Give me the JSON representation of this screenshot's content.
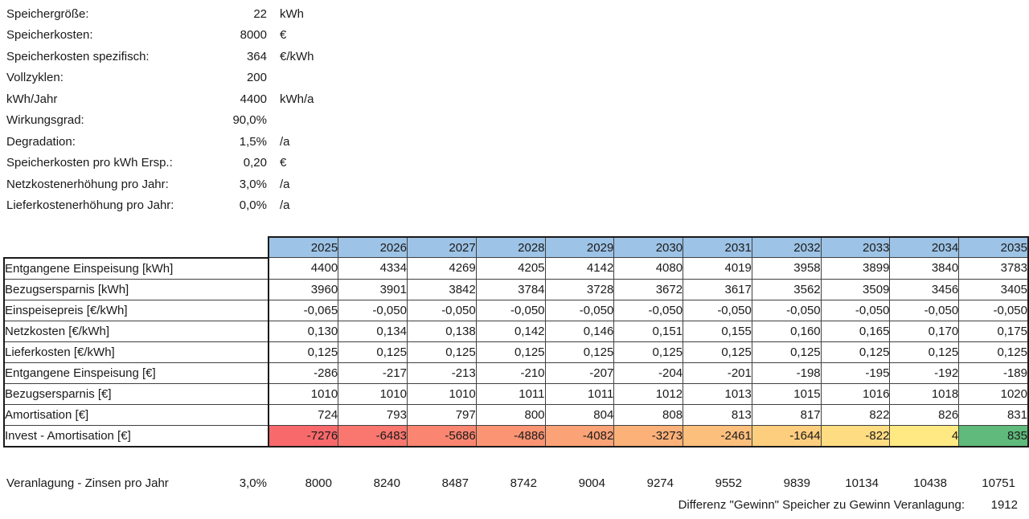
{
  "parameters": [
    {
      "label": "Speichergröße:",
      "value": "22",
      "unit": "kWh"
    },
    {
      "label": "Speicherkosten:",
      "value": "8000",
      "unit": "€"
    },
    {
      "label": "Speicherkosten spezifisch:",
      "value": "364",
      "unit": "€/kWh"
    },
    {
      "label": "Vollzyklen:",
      "value": "200",
      "unit": ""
    },
    {
      "label": "kWh/Jahr",
      "value": "4400",
      "unit": "kWh/a"
    },
    {
      "label": "Wirkungsgrad:",
      "value": "90,0%",
      "unit": ""
    },
    {
      "label": "Degradation:",
      "value": "1,5%",
      "unit": "/a"
    },
    {
      "label": "Speicherkosten pro kWh Ersp.:",
      "value": "0,20",
      "unit": "€"
    },
    {
      "label": "Netzkostenerhöhung pro Jahr:",
      "value": "3,0%",
      "unit": "/a"
    },
    {
      "label": "Lieferkostenerhöhung pro Jahr:",
      "value": "0,0%",
      "unit": "/a"
    }
  ],
  "table": {
    "header_fill": "#9DC3E6",
    "years": [
      "2025",
      "2026",
      "2027",
      "2028",
      "2029",
      "2030",
      "2031",
      "2032",
      "2033",
      "2034",
      "2035"
    ],
    "rows": [
      {
        "label": "Entgangene Einspeisung [kWh]",
        "values": [
          "4400",
          "4334",
          "4269",
          "4205",
          "4142",
          "4080",
          "4019",
          "3958",
          "3899",
          "3840",
          "3783"
        ]
      },
      {
        "label": "Bezugsersparnis [kWh]",
        "values": [
          "3960",
          "3901",
          "3842",
          "3784",
          "3728",
          "3672",
          "3617",
          "3562",
          "3509",
          "3456",
          "3405"
        ]
      },
      {
        "label": "Einspeisepreis [€/kWh]",
        "values": [
          "-0,065",
          "-0,050",
          "-0,050",
          "-0,050",
          "-0,050",
          "-0,050",
          "-0,050",
          "-0,050",
          "-0,050",
          "-0,050",
          "-0,050"
        ]
      },
      {
        "label": "Netzkosten [€/kWh]",
        "values": [
          "0,130",
          "0,134",
          "0,138",
          "0,142",
          "0,146",
          "0,151",
          "0,155",
          "0,160",
          "0,165",
          "0,170",
          "0,175"
        ]
      },
      {
        "label": "Lieferkosten [€/kWh]",
        "values": [
          "0,125",
          "0,125",
          "0,125",
          "0,125",
          "0,125",
          "0,125",
          "0,125",
          "0,125",
          "0,125",
          "0,125",
          "0,125"
        ]
      },
      {
        "label": "Entgangene Einspeisung [€]",
        "values": [
          "-286",
          "-217",
          "-213",
          "-210",
          "-207",
          "-204",
          "-201",
          "-198",
          "-195",
          "-192",
          "-189"
        ]
      },
      {
        "label": "Bezugsersparnis [€]",
        "values": [
          "1010",
          "1010",
          "1010",
          "1011",
          "1011",
          "1012",
          "1013",
          "1015",
          "1016",
          "1018",
          "1020"
        ]
      },
      {
        "label": "Amortisation [€]",
        "values": [
          "724",
          "793",
          "797",
          "800",
          "804",
          "808",
          "813",
          "817",
          "822",
          "826",
          "831"
        ]
      },
      {
        "label": "Invest - Amortisation [€]",
        "values": [
          "-7276",
          "-6483",
          "-5686",
          "-4886",
          "-4082",
          "-3273",
          "-2461",
          "-1644",
          "-822",
          "4",
          "835"
        ],
        "cell_colors": [
          "#F8696B",
          "#F9776E",
          "#FA8570",
          "#FA9473",
          "#FBA276",
          "#FCB179",
          "#FDBF7C",
          "#FDCE7E",
          "#FEDC81",
          "#FEE983",
          "#5FBA7B"
        ]
      }
    ]
  },
  "bottom": {
    "veranlagung_label": "Veranlagung - Zinsen pro Jahr",
    "veranlagung_rate": "3,0%",
    "veranlagung_values": [
      "8000",
      "8240",
      "8487",
      "8742",
      "9004",
      "9274",
      "9552",
      "9839",
      "10134",
      "10438",
      "10751"
    ],
    "differenz_label": "Differenz \"Gewinn\" Speicher zu Gewinn Veranlagung:",
    "differenz_value": "1912"
  }
}
